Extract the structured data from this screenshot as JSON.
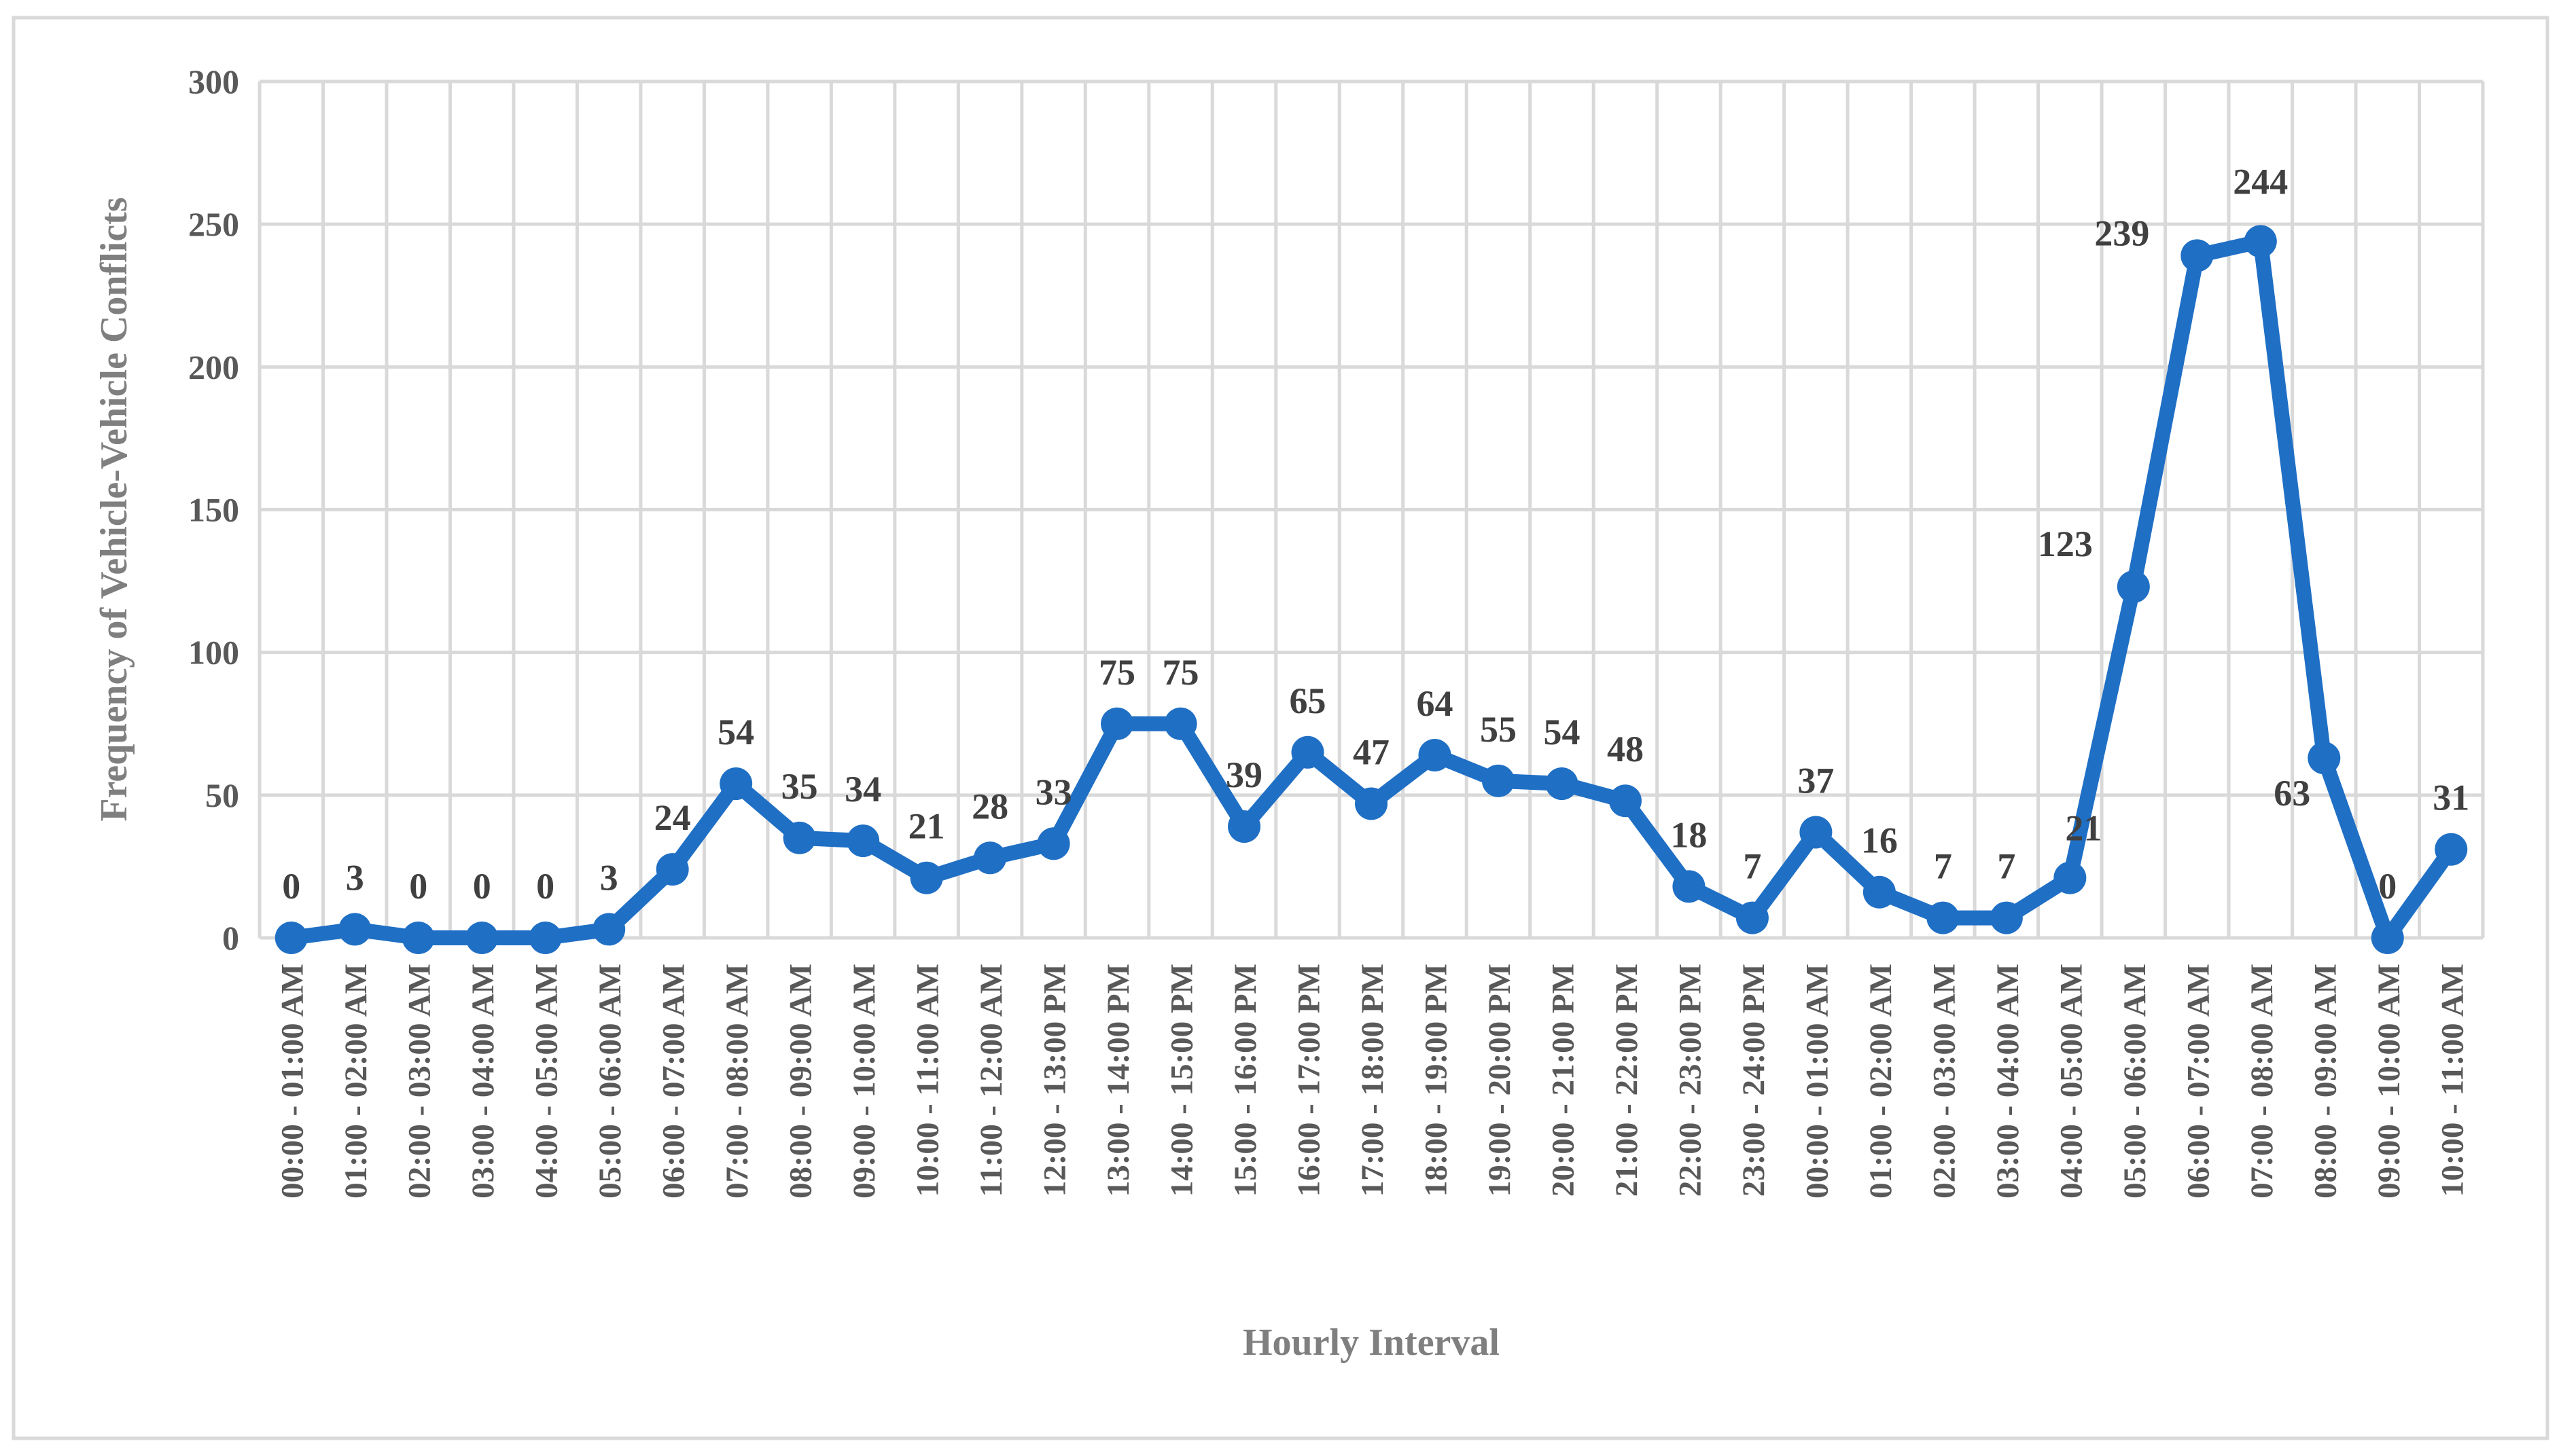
{
  "chart_data": {
    "type": "line",
    "title": "",
    "xlabel": "Hourly Interval",
    "ylabel": "Frequency of Vehicle-Vehicle Conflicts",
    "ylim": [
      0,
      300
    ],
    "yticks": [
      "0",
      "50",
      "100",
      "150",
      "200",
      "250",
      "300"
    ],
    "grid": true,
    "legend": "none",
    "colors": {
      "line": "#1f6fc5",
      "grid": "#d9d9d9",
      "tick": "#595959",
      "label": "#404040",
      "axis_title": "#7f7f7f"
    },
    "categories": [
      "00:00 - 01:00 AM",
      "01:00 - 02:00 AM",
      "02:00 - 03:00 AM",
      "03:00 - 04:00 AM",
      "04:00 - 05:00 AM",
      "05:00 - 06:00 AM",
      "06:00 - 07:00 AM",
      "07:00 - 08:00 AM",
      "08:00 - 09:00 AM",
      "09:00 - 10:00 AM",
      "10:00 - 11:00 AM",
      "11:00 - 12:00 AM",
      "12:00 - 13:00 PM",
      "13:00 - 14:00 PM",
      "14:00 - 15:00 PM",
      "15:00 - 16:00 PM",
      "16:00 - 17:00 PM",
      "17:00 - 18:00 PM",
      "18:00 - 19:00 PM",
      "19:00 - 20:00 PM",
      "20:00 - 21:00 PM",
      "21:00 - 22:00 PM",
      "22:00 - 23:00 PM",
      "23:00 - 24:00 PM",
      "00:00 - 01:00 AM",
      "01:00 - 02:00 AM",
      "02:00 - 03:00 AM",
      "03:00 - 04:00 AM",
      "04:00 - 05:00 AM",
      "05:00 - 06:00 AM",
      "06:00 - 07:00 AM",
      "07:00 - 08:00 AM",
      "08:00 - 09:00 AM",
      "09:00 - 10:00 AM",
      "10:00 - 11:00 AM"
    ],
    "series": [
      {
        "values": [
          0,
          3,
          0,
          0,
          0,
          3,
          24,
          54,
          35,
          34,
          21,
          28,
          33,
          75,
          75,
          39,
          65,
          47,
          64,
          55,
          54,
          48,
          18,
          7,
          37,
          16,
          7,
          7,
          21,
          123,
          239,
          244,
          63,
          0,
          31
        ]
      }
    ]
  }
}
